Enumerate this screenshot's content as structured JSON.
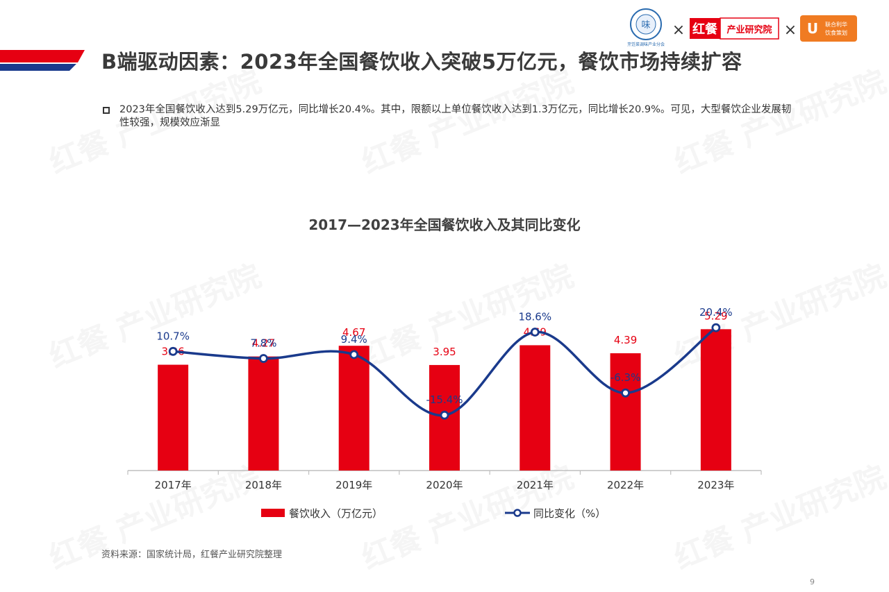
{
  "header": {
    "title": "B端驱动因素：2023年全国餐饮收入突破5万亿元，餐饮市场持续扩容",
    "logos": {
      "logo1_label": "烹饪菜调味产业分会",
      "logo2_brand": "红餐",
      "logo2_name": "产业研究院",
      "logo3_line1": "联合利华",
      "logo3_line2": "饮食策划",
      "separator": "×"
    }
  },
  "description": "2023年全国餐饮收入达到5.29万亿元，同比增长20.4%。其中，限额以上单位餐饮收入达到1.3万亿元，同比增长20.9%。可见，大型餐饮企业发展韧性较强，规模效应渐显",
  "watermark": "红餐 产业研究院",
  "chart_data": {
    "type": "bar",
    "title": "2017—2023年全国餐饮收入及其同比变化",
    "categories": [
      "2017年",
      "2018年",
      "2019年",
      "2020年",
      "2021年",
      "2022年",
      "2023年"
    ],
    "series": [
      {
        "name": "餐饮收入（万亿元）",
        "type": "bar",
        "color": "#e60012",
        "values": [
          3.96,
          4.27,
          4.67,
          3.95,
          4.69,
          4.39,
          5.29
        ],
        "labels": [
          "3.96",
          "4.27",
          "4.67",
          "3.95",
          "4.69",
          "4.39",
          "5.29"
        ]
      },
      {
        "name": "同比变化（%）",
        "type": "line",
        "color": "#1a3a8c",
        "values": [
          10.7,
          7.8,
          9.4,
          -15.4,
          18.6,
          -6.3,
          20.4
        ],
        "labels": [
          "10.7%",
          "7.8%",
          "9.4%",
          "-15.4%",
          "18.6%",
          "-6.3%",
          "20.4%"
        ]
      }
    ],
    "legend": "bottom"
  },
  "source": "资料来源：国家统计局，红餐产业研究院整理",
  "page_number": "9"
}
